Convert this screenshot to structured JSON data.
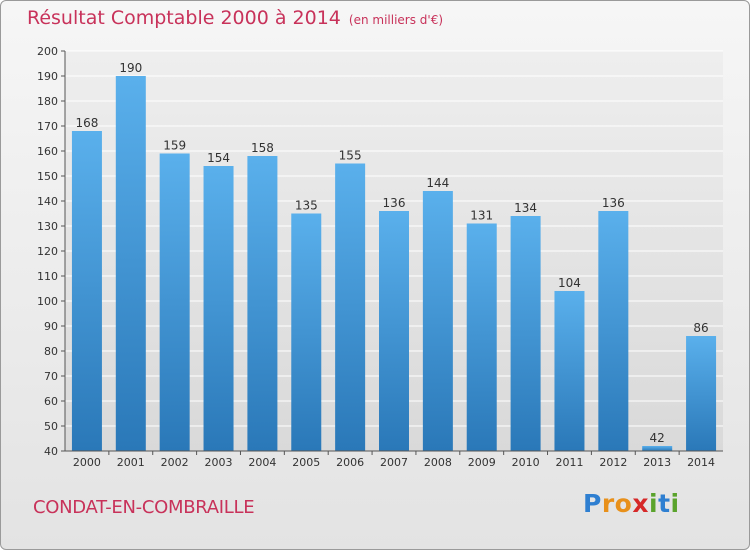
{
  "title": "Résultat Comptable 2000 à 2014",
  "subtitle": "(en milliers d'€)",
  "commune": "CONDAT-EN-COMBRAILLE",
  "logo": {
    "letters": [
      "P",
      "r",
      "o",
      "x",
      "i",
      "t",
      "i"
    ],
    "colors": [
      "#2e7fd1",
      "#e8901a",
      "#e8901a",
      "#d62828",
      "#5aa32c",
      "#2e7fd1",
      "#5aa32c"
    ]
  },
  "colors": {
    "bar_light": "#5ab0ec",
    "bar_dark": "#2a78b8",
    "text_accent": "#c8325a"
  },
  "chart_data": {
    "type": "bar",
    "title": "Résultat Comptable 2000 à 2014",
    "xlabel": "",
    "ylabel": "",
    "ylim": [
      40,
      200
    ],
    "yticks": [
      40,
      50,
      60,
      70,
      80,
      90,
      100,
      110,
      120,
      130,
      140,
      150,
      160,
      170,
      180,
      190,
      200
    ],
    "grid": true,
    "categories": [
      "2000",
      "2001",
      "2002",
      "2003",
      "2004",
      "2005",
      "2006",
      "2007",
      "2008",
      "2009",
      "2010",
      "2011",
      "2012",
      "2013",
      "2014"
    ],
    "values": [
      168,
      190,
      159,
      154,
      158,
      135,
      155,
      136,
      144,
      131,
      134,
      104,
      136,
      42,
      86
    ]
  }
}
